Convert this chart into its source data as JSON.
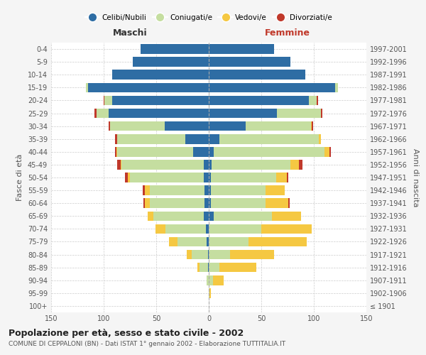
{
  "age_groups": [
    "100+",
    "95-99",
    "90-94",
    "85-89",
    "80-84",
    "75-79",
    "70-74",
    "65-69",
    "60-64",
    "55-59",
    "50-54",
    "45-49",
    "40-44",
    "35-39",
    "30-34",
    "25-29",
    "20-24",
    "15-19",
    "10-14",
    "5-9",
    "0-4"
  ],
  "birth_years": [
    "≤ 1901",
    "1902-1906",
    "1907-1911",
    "1912-1916",
    "1917-1921",
    "1922-1926",
    "1927-1931",
    "1932-1936",
    "1937-1941",
    "1942-1946",
    "1947-1951",
    "1952-1956",
    "1957-1961",
    "1962-1966",
    "1967-1971",
    "1972-1976",
    "1977-1981",
    "1982-1986",
    "1987-1991",
    "1992-1996",
    "1997-2001"
  ],
  "male": {
    "celibi": [
      0,
      0,
      0,
      1,
      1,
      2,
      3,
      5,
      4,
      4,
      5,
      5,
      15,
      22,
      42,
      95,
      92,
      115,
      92,
      72,
      65
    ],
    "coniugati": [
      0,
      0,
      2,
      8,
      15,
      28,
      38,
      48,
      52,
      52,
      70,
      78,
      72,
      65,
      52,
      12,
      7,
      2,
      0,
      0,
      0
    ],
    "vedovi": [
      0,
      0,
      0,
      2,
      5,
      8,
      10,
      5,
      5,
      5,
      2,
      1,
      1,
      0,
      0,
      0,
      0,
      0,
      0,
      0,
      0
    ],
    "divorziati": [
      0,
      0,
      0,
      0,
      0,
      0,
      0,
      0,
      1,
      2,
      3,
      3,
      1,
      2,
      1,
      2,
      1,
      0,
      0,
      0,
      0
    ]
  },
  "female": {
    "nubili": [
      0,
      0,
      0,
      0,
      0,
      0,
      0,
      5,
      2,
      2,
      2,
      3,
      5,
      10,
      35,
      65,
      95,
      120,
      92,
      78,
      62
    ],
    "coniugate": [
      0,
      1,
      4,
      10,
      20,
      38,
      50,
      55,
      52,
      52,
      62,
      75,
      105,
      95,
      62,
      42,
      8,
      3,
      0,
      0,
      0
    ],
    "vedove": [
      0,
      1,
      10,
      35,
      42,
      55,
      48,
      28,
      22,
      18,
      10,
      8,
      5,
      2,
      1,
      0,
      0,
      0,
      0,
      0,
      0
    ],
    "divorziate": [
      0,
      0,
      0,
      0,
      0,
      0,
      0,
      0,
      1,
      0,
      2,
      3,
      1,
      0,
      1,
      1,
      1,
      0,
      0,
      0,
      0
    ]
  },
  "colors": {
    "celibi": "#2e6da4",
    "coniugati": "#c5dea0",
    "vedovi": "#f5c842",
    "divorziati": "#c0392b"
  },
  "xlim": 150,
  "title": "Popolazione per età, sesso e stato civile - 2002",
  "subtitle": "COMUNE DI CEPPALONI (BN) - Dati ISTAT 1° gennaio 2002 - Elaborazione TUTTITALIA.IT",
  "ylabel_left": "Fasce di età",
  "ylabel_right": "Anni di nascita",
  "xlabel_left": "Maschi",
  "xlabel_right": "Femmine",
  "bg_color": "#f5f5f5",
  "plot_bg_color": "#ffffff"
}
